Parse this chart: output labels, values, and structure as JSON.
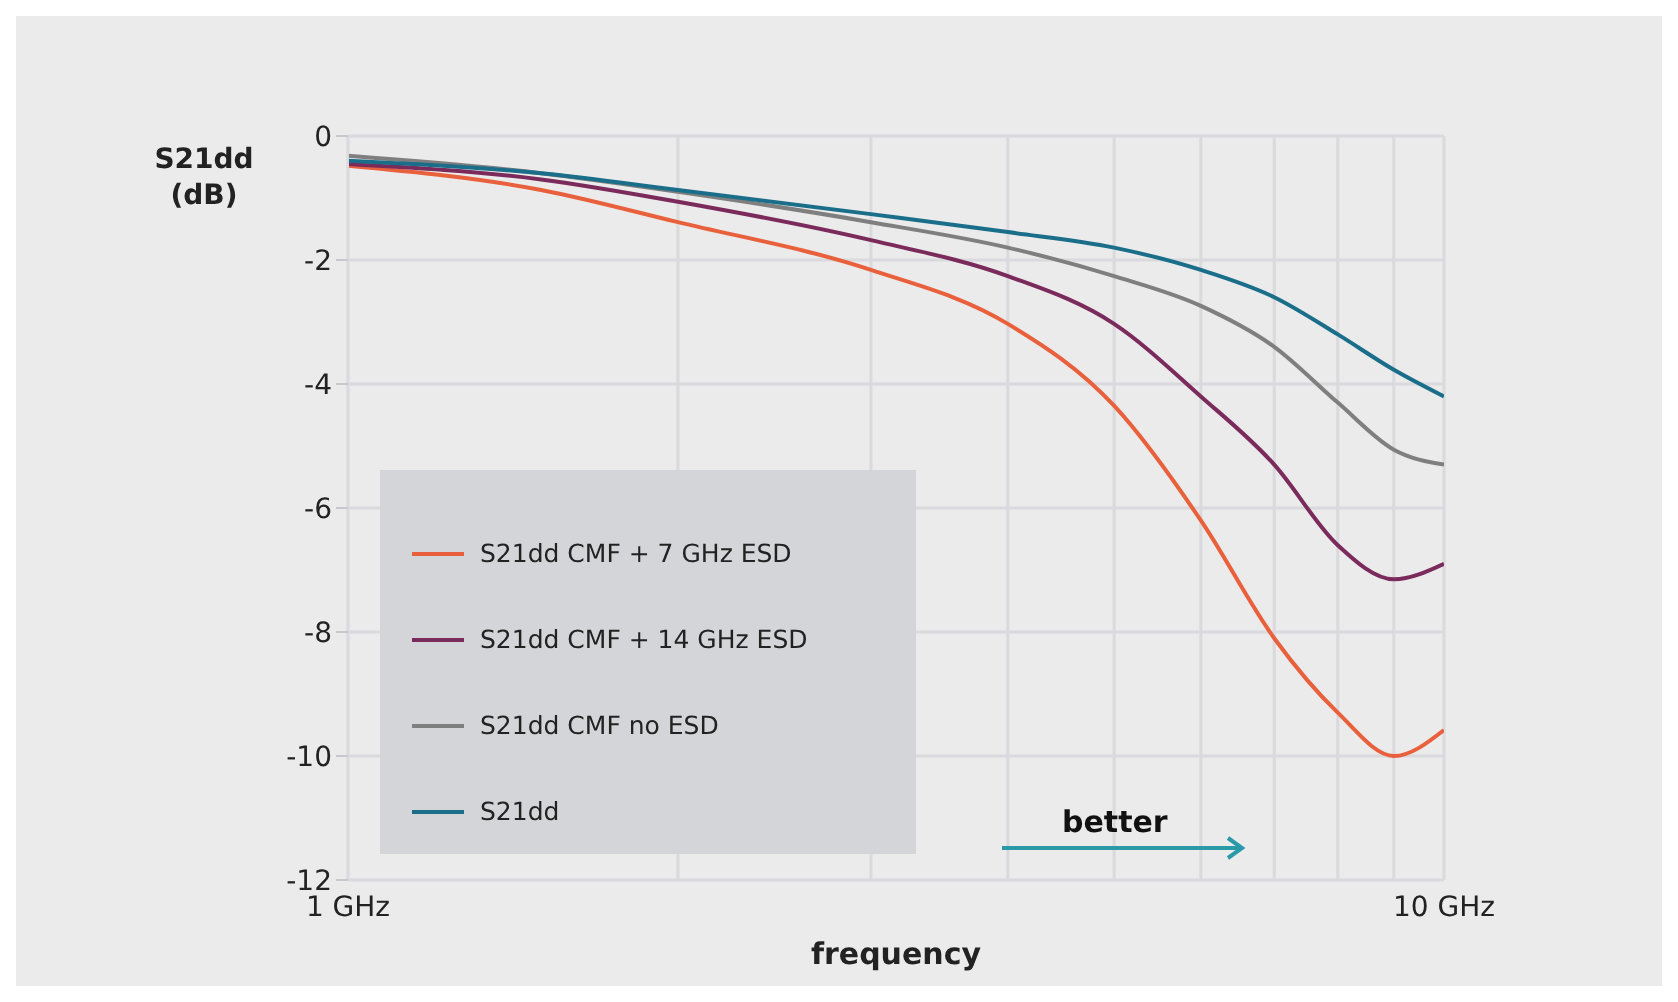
{
  "chart_data": {
    "type": "line",
    "xlabel": "frequency",
    "ylabel": "S21dd (dB)",
    "x": [
      1,
      1.5,
      2,
      3,
      4,
      5,
      6,
      7,
      8,
      9,
      10
    ],
    "series": [
      {
        "name": "S21dd CMF + 7 GHz ESD",
        "color": "#e8603c",
        "values": [
          -0.48,
          -0.87,
          -1.39,
          -2.16,
          -3.03,
          -4.35,
          -6.2,
          -8.1,
          -9.3,
          -10.0,
          -9.58
        ]
      },
      {
        "name": "S21dd CMF + 14 GHz ESD",
        "color": "#7b2a5c",
        "values": [
          -0.45,
          -0.7,
          -1.06,
          -1.68,
          -2.26,
          -3.03,
          -4.2,
          -5.3,
          -6.6,
          -7.15,
          -6.9
        ]
      },
      {
        "name": "S21dd CMF no ESD",
        "color": "#7f7f7f",
        "values": [
          -0.32,
          -0.6,
          -0.9,
          -1.39,
          -1.8,
          -2.26,
          -2.74,
          -3.4,
          -4.3,
          -5.06,
          -5.3
        ]
      },
      {
        "name": "S21dd",
        "color": "#1a6e8a",
        "values": [
          -0.4,
          -0.6,
          -0.87,
          -1.26,
          -1.55,
          -1.8,
          -2.16,
          -2.6,
          -3.2,
          -3.77,
          -4.2
        ]
      }
    ],
    "log": "x",
    "xlim": [
      1,
      10
    ],
    "xticks": [
      {
        "value": 1,
        "label": "1 GHz"
      },
      {
        "value": 2,
        "label": null
      },
      {
        "value": 3,
        "label": null
      },
      {
        "value": 4,
        "label": null
      },
      {
        "value": 5,
        "label": null
      },
      {
        "value": 6,
        "label": null
      },
      {
        "value": 7,
        "label": null
      },
      {
        "value": 8,
        "label": null
      },
      {
        "value": 9,
        "label": null
      },
      {
        "value": 10,
        "label": "10 GHz"
      }
    ],
    "ylim": [
      -12,
      0
    ],
    "yticks": [
      0,
      -2,
      -4,
      -6,
      -8,
      -10,
      -12
    ],
    "grid": true,
    "legend": "bottom left",
    "marker": "none",
    "line_style": "solid",
    "annotations": [
      "better"
    ]
  }
}
